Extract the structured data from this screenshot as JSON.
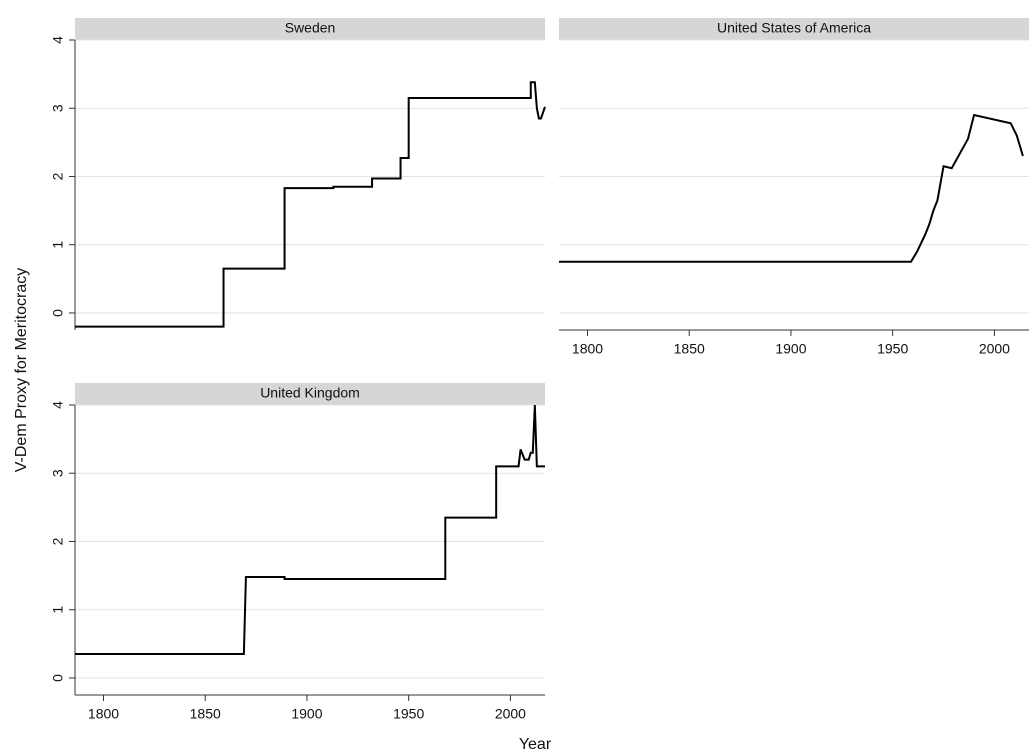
{
  "y_label": "V-Dem Proxy for Meritocracy",
  "x_label": "Year",
  "chart_data": [
    {
      "type": "line",
      "title": "Sweden",
      "color": "#000000",
      "grid": true,
      "show_ytick_labels": true,
      "xlim": [
        1786,
        2017
      ],
      "ylim": [
        -0.25,
        4
      ],
      "yticks": [
        0,
        1,
        2,
        3,
        4
      ],
      "x": [
        1786,
        1859,
        1859,
        1889,
        1889,
        1913,
        1913,
        1932,
        1932,
        1946,
        1946,
        1950,
        1950,
        2010,
        2010,
        2012,
        2013,
        2014,
        2015,
        2017
      ],
      "values": [
        -0.2,
        -0.2,
        0.65,
        0.65,
        1.83,
        1.83,
        1.85,
        1.85,
        1.97,
        1.97,
        2.27,
        2.27,
        3.15,
        3.15,
        3.38,
        3.38,
        3.0,
        2.85,
        2.85,
        3.02
      ]
    },
    {
      "type": "line",
      "title": "United States of America",
      "color": "#000000",
      "grid": true,
      "show_ytick_labels": false,
      "xlim": [
        1786,
        2017
      ],
      "ylim": [
        -0.25,
        4
      ],
      "yticks": [
        0,
        1,
        2,
        3,
        4
      ],
      "xticks": [
        1800,
        1850,
        1900,
        1950,
        2000
      ],
      "x": [
        1786,
        1959,
        1962,
        1962,
        1966,
        1966,
        1968,
        1968,
        1970,
        1970,
        1972,
        1972,
        1975,
        1975,
        1979,
        1979,
        1987,
        1987,
        1990,
        1990,
        2008,
        2008,
        2011,
        2011,
        2014
      ],
      "values": [
        0.75,
        0.75,
        0.9,
        0.9,
        1.15,
        1.15,
        1.3,
        1.3,
        1.5,
        1.5,
        1.65,
        1.65,
        2.15,
        2.15,
        2.12,
        2.12,
        2.55,
        2.55,
        2.9,
        2.9,
        2.78,
        2.78,
        2.6,
        2.6,
        2.3
      ]
    },
    {
      "type": "line",
      "title": "United Kingdom",
      "color": "#000000",
      "grid": true,
      "show_ytick_labels": true,
      "xlim": [
        1786,
        2017
      ],
      "ylim": [
        -0.25,
        4
      ],
      "yticks": [
        0,
        1,
        2,
        3,
        4
      ],
      "xticks": [
        1800,
        1850,
        1900,
        1950,
        2000
      ],
      "x": [
        1786,
        1869,
        1870,
        1889,
        1889,
        1968,
        1968,
        1993,
        1993,
        2004,
        2005,
        2007,
        2009,
        2010,
        2011,
        2012,
        2013,
        2014,
        2017
      ],
      "values": [
        0.35,
        0.35,
        1.48,
        1.48,
        1.45,
        1.45,
        2.35,
        2.35,
        3.1,
        3.1,
        3.35,
        3.2,
        3.2,
        3.3,
        3.3,
        4.0,
        3.1,
        3.1,
        3.1
      ]
    }
  ]
}
